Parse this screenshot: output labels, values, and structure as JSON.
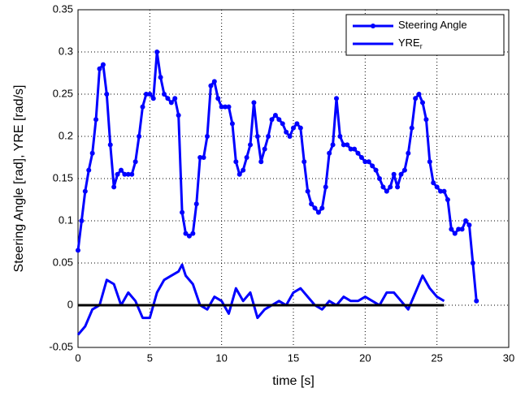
{
  "chart_data": {
    "type": "line",
    "xlabel": "time [s]",
    "ylabel": "Steering Angle [rad], YRE [rad/s]",
    "xlim": [
      0,
      30
    ],
    "xticks": [
      0,
      5,
      10,
      15,
      20,
      25,
      30
    ],
    "ylim": [
      -0.05,
      0.35
    ],
    "yticks": [
      -0.05,
      0,
      0.05,
      0.1,
      0.15,
      0.2,
      0.25,
      0.3,
      0.35
    ],
    "grid": true,
    "legend": "top-right",
    "reference_line": 0,
    "series": [
      {
        "name": "Steering Angle",
        "color": "#0000ff",
        "marker": true,
        "x": [
          0,
          0.25,
          0.5,
          0.75,
          1,
          1.25,
          1.5,
          1.75,
          2,
          2.25,
          2.5,
          2.75,
          3,
          3.25,
          3.5,
          3.75,
          4,
          4.25,
          4.5,
          4.75,
          5,
          5.25,
          5.5,
          5.75,
          6,
          6.25,
          6.5,
          6.75,
          7,
          7.25,
          7.5,
          7.75,
          8,
          8.25,
          8.5,
          8.75,
          9,
          9.25,
          9.5,
          9.75,
          10,
          10.25,
          10.5,
          10.75,
          11,
          11.25,
          11.5,
          11.75,
          12,
          12.25,
          12.5,
          12.75,
          13,
          13.25,
          13.5,
          13.75,
          14,
          14.25,
          14.5,
          14.75,
          15,
          15.25,
          15.5,
          15.75,
          16,
          16.25,
          16.5,
          16.75,
          17,
          17.25,
          17.5,
          17.75,
          18,
          18.25,
          18.5,
          18.75,
          19,
          19.25,
          19.5,
          19.75,
          20,
          20.25,
          20.5,
          20.75,
          21,
          21.25,
          21.5,
          21.75,
          22,
          22.25,
          22.5,
          22.75,
          23,
          23.25,
          23.5,
          23.75,
          24,
          24.25,
          24.5,
          24.75,
          25,
          25.25,
          25.5,
          25.75,
          26,
          26.25,
          26.5,
          26.75,
          27,
          27.25,
          27.5,
          27.75
        ],
        "values": [
          0.065,
          0.1,
          0.135,
          0.16,
          0.18,
          0.22,
          0.28,
          0.285,
          0.25,
          0.19,
          0.14,
          0.155,
          0.16,
          0.155,
          0.155,
          0.155,
          0.17,
          0.2,
          0.235,
          0.25,
          0.25,
          0.245,
          0.3,
          0.27,
          0.25,
          0.245,
          0.24,
          0.245,
          0.225,
          0.11,
          0.085,
          0.082,
          0.085,
          0.12,
          0.175,
          0.175,
          0.2,
          0.26,
          0.265,
          0.245,
          0.235,
          0.235,
          0.235,
          0.215,
          0.17,
          0.155,
          0.16,
          0.175,
          0.19,
          0.24,
          0.2,
          0.17,
          0.185,
          0.2,
          0.22,
          0.225,
          0.22,
          0.215,
          0.205,
          0.2,
          0.21,
          0.215,
          0.21,
          0.17,
          0.135,
          0.12,
          0.115,
          0.11,
          0.115,
          0.14,
          0.18,
          0.19,
          0.245,
          0.2,
          0.19,
          0.19,
          0.185,
          0.185,
          0.18,
          0.175,
          0.17,
          0.17,
          0.165,
          0.16,
          0.15,
          0.14,
          0.135,
          0.14,
          0.155,
          0.14,
          0.155,
          0.16,
          0.18,
          0.21,
          0.245,
          0.25,
          0.24,
          0.22,
          0.17,
          0.145,
          0.14,
          0.135,
          0.135,
          0.125,
          0.09,
          0.085,
          0.09,
          0.09,
          0.1,
          0.095,
          0.05,
          0.005
        ]
      },
      {
        "name": "YRE",
        "name_subscript": "r",
        "color": "#0000ff",
        "marker": false,
        "x": [
          0,
          0.5,
          1,
          1.5,
          2,
          2.5,
          3,
          3.5,
          4,
          4.5,
          5,
          5.5,
          6,
          6.5,
          7,
          7.25,
          7.5,
          8,
          8.5,
          9,
          9.5,
          10,
          10.5,
          11,
          11.5,
          12,
          12.5,
          13,
          13.5,
          14,
          14.5,
          15,
          15.5,
          16,
          16.5,
          17,
          17.5,
          18,
          18.5,
          19,
          19.5,
          20,
          20.5,
          21,
          21.5,
          22,
          22.5,
          23,
          23.5,
          24,
          24.5,
          25,
          25.5
        ],
        "values": [
          -0.035,
          -0.025,
          -0.005,
          0,
          0.03,
          0.025,
          0,
          0.015,
          0.005,
          -0.015,
          -0.015,
          0.015,
          0.03,
          0.035,
          0.04,
          0.048,
          0.035,
          0.025,
          0,
          -0.005,
          0.01,
          0.005,
          -0.01,
          0.02,
          0.005,
          0.015,
          -0.015,
          -0.005,
          0,
          0.005,
          0,
          0.015,
          0.02,
          0.01,
          0,
          -0.005,
          0.005,
          0,
          0.01,
          0.005,
          0.005,
          0.01,
          0.005,
          0,
          0.015,
          0.015,
          0.005,
          -0.005,
          0.015,
          0.035,
          0.02,
          0.01,
          0.005
        ]
      }
    ]
  }
}
